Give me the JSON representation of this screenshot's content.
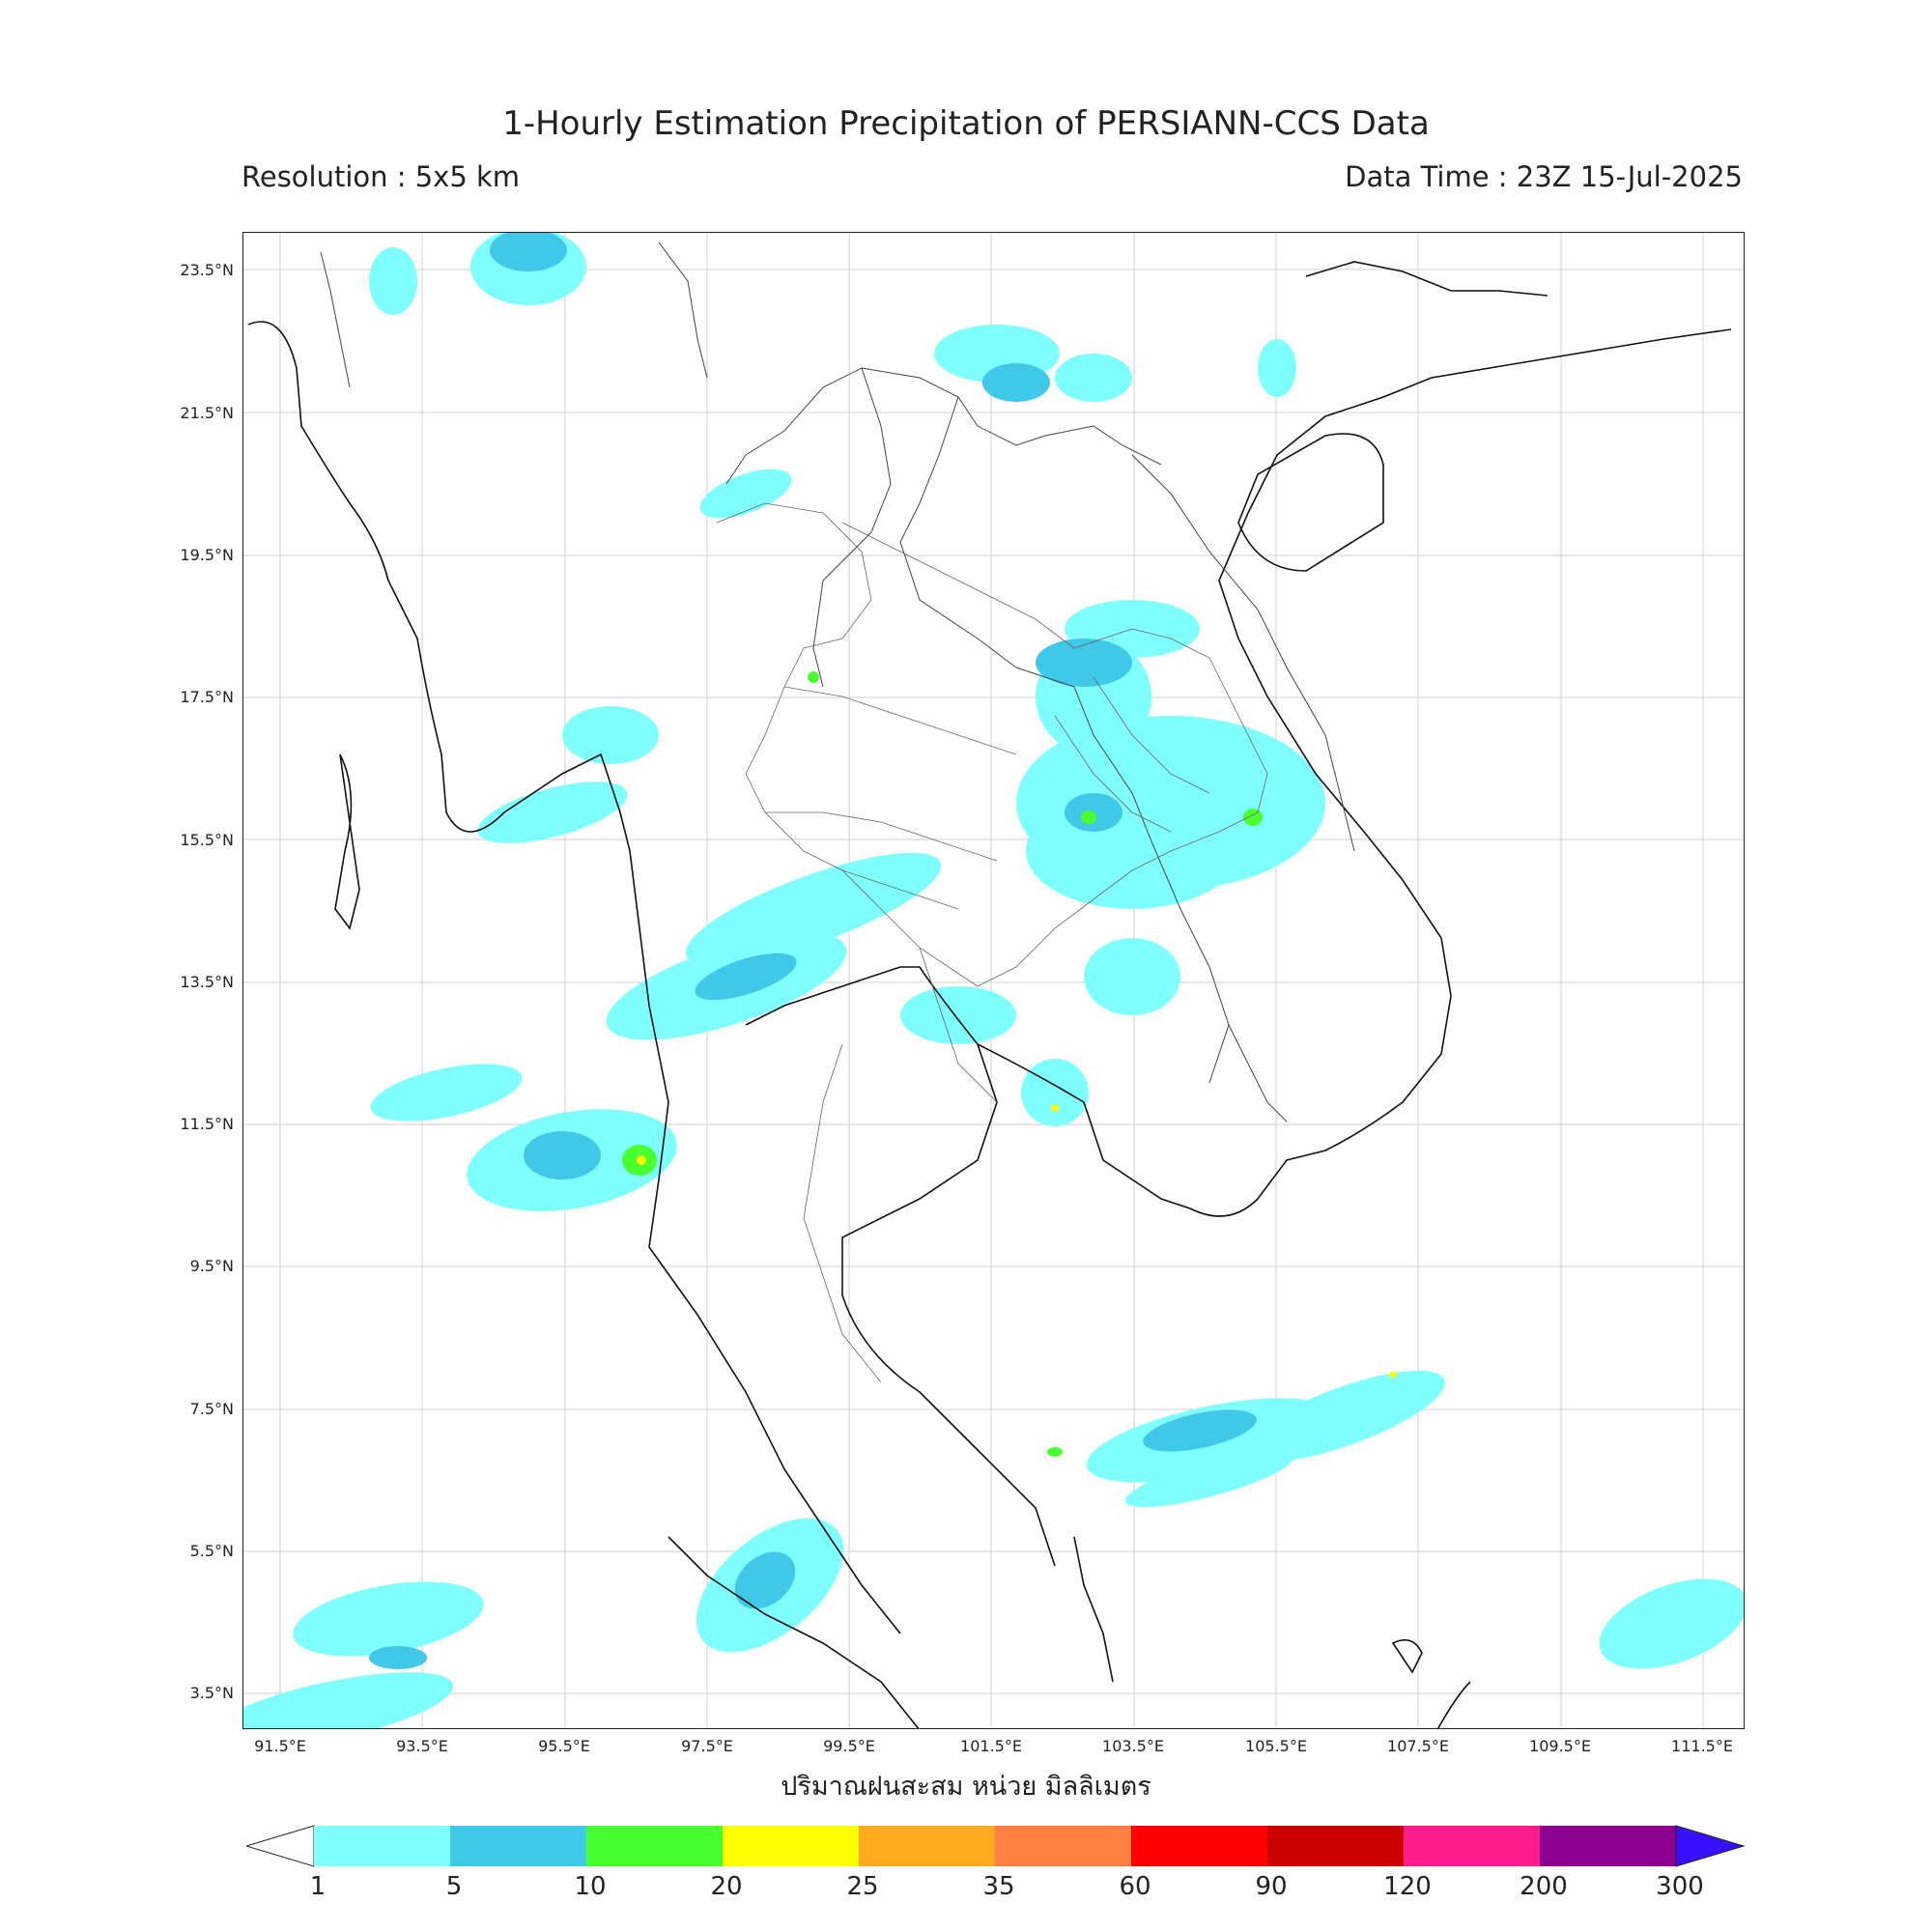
{
  "title": "1-Hourly Estimation Precipitation of PERSIANN-CCS Data",
  "resolution": "Resolution : 5x5 km",
  "data_time": "Data Time : 23Z 15-Jul-2025",
  "unit_label": "ปริมาณฝนสะสม หน่วย มิลลิเมตร",
  "lat_labels": [
    "23.5°N",
    "21.5°N",
    "19.5°N",
    "17.5°N",
    "15.5°N",
    "13.5°N",
    "11.5°N",
    "9.5°N",
    "7.5°N",
    "5.5°N",
    "3.5°N"
  ],
  "lon_labels": [
    "91.5°E",
    "93.5°E",
    "95.5°E",
    "97.5°E",
    "99.5°E",
    "101.5°E",
    "103.5°E",
    "105.5°E",
    "107.5°E",
    "109.5°E",
    "111.5°E"
  ],
  "colorbar": {
    "ticks": [
      "1",
      "5",
      "10",
      "20",
      "25",
      "35",
      "60",
      "90",
      "120",
      "200",
      "300"
    ],
    "colors": [
      "#80ffff",
      "#40c8e8",
      "#48ff30",
      "#ffff00",
      "#ffaa20",
      "#ff8040",
      "#ff0000",
      "#cc0000",
      "#ff1c8c",
      "#8c0090"
    ],
    "under_color": "#ffffff",
    "over_color": "#3810ff"
  },
  "rain_colors": {
    "light": "#80ffff",
    "moderate": "#40c8e8",
    "heavy": "#48ff30",
    "very_heavy": "#ffff00",
    "extreme": "#ffaa20"
  }
}
